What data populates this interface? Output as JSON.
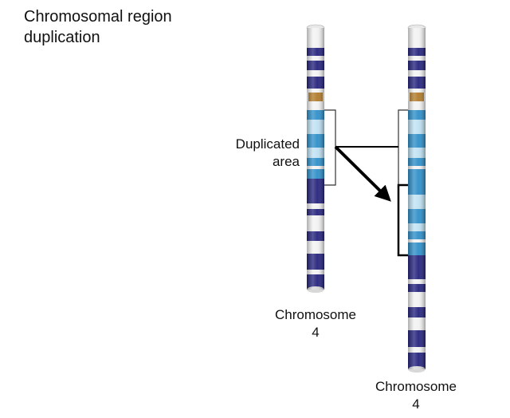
{
  "title_line1": "Chromosomal region",
  "title_line2": "duplication",
  "annotation_line1": "Duplicated",
  "annotation_line2": "area",
  "chromosome_left": {
    "name": "Chromosome",
    "number": "4"
  },
  "chromosome_right": {
    "name": "Chromosome",
    "number": "4"
  },
  "colors": {
    "dark_band": "#25237d",
    "mid_band": "#2e8fc9",
    "light_band": "#bfe1f3",
    "centromere": "#b07a2a",
    "white_band": "#f2f2f2"
  }
}
